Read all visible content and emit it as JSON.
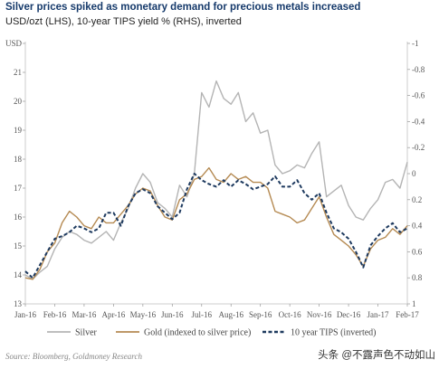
{
  "header": {
    "title": "Silver prices spiked as monetary demand for precious metals increased",
    "subtitle": "USD/ozt (LHS), 10-year TIPS yield % (RHS), inverted"
  },
  "footer": {
    "source": "Source: Bloomberg, Goldmoney Research",
    "watermark": "头条 @不露声色不动如山"
  },
  "colors": {
    "silver": "#b4b4b4",
    "gold": "#b58a52",
    "tips": "#1e3a5f",
    "axis": "#cccccc",
    "title": "#163a6b"
  },
  "chart_data": {
    "type": "line",
    "title": "Silver prices spiked as monetary demand for precious metals increased",
    "subtitle": "USD/ozt (LHS), 10-year TIPS yield % (RHS), inverted",
    "xlabel": "",
    "ylabel_left": "USD/ozt",
    "ylabel_right": "10-year TIPS yield %",
    "ylim_left": [
      13,
      22
    ],
    "ylim_right": [
      1,
      -1
    ],
    "right_axis_inverted": true,
    "yticks_left": [
      13,
      14,
      15,
      16,
      17,
      18,
      19,
      20,
      21,
      22
    ],
    "yticks_left_labels": [
      "13",
      "14",
      "15",
      "16",
      "17",
      "18",
      "19",
      "20",
      "21",
      "USD"
    ],
    "yticks_right": [
      1,
      0.8,
      0.6,
      0.4,
      0.2,
      0,
      -0.2,
      -0.4,
      -0.6,
      -0.8,
      -1
    ],
    "yticks_right_labels": [
      "1",
      "0.8",
      "0.6",
      "0.4",
      "0.2",
      "0",
      "-0.2",
      "-0.4",
      "-0.6",
      "-0.8",
      "-1"
    ],
    "x_ticks": [
      "Jan-16",
      "Feb-16",
      "Mar-16",
      "Apr-16",
      "May-16",
      "Jun-16",
      "Jul-16",
      "Aug-16",
      "Sep-16",
      "Oct-16",
      "Nov-16",
      "Dec-16",
      "Jan-17",
      "Feb-17"
    ],
    "x": [
      0,
      0.25,
      0.5,
      0.75,
      1,
      1.25,
      1.5,
      1.75,
      2,
      2.25,
      2.5,
      2.75,
      3,
      3.25,
      3.5,
      3.75,
      4,
      4.25,
      4.5,
      4.75,
      5,
      5.25,
      5.5,
      5.75,
      6,
      6.25,
      6.5,
      6.75,
      7,
      7.25,
      7.5,
      7.75,
      8,
      8.25,
      8.5,
      8.75,
      9,
      9.25,
      9.5,
      9.75,
      10,
      10.25,
      10.5,
      10.75,
      11,
      11.25,
      11.5,
      11.75,
      12,
      12.25,
      12.5,
      12.75,
      13
    ],
    "grid": false,
    "legend": "bottom",
    "series": [
      {
        "name": "Silver",
        "axis": "left",
        "style": "solid",
        "values": [
          14.0,
          13.85,
          14.1,
          14.3,
          14.9,
          15.3,
          15.5,
          15.4,
          15.2,
          15.1,
          15.3,
          15.5,
          15.2,
          15.8,
          16.3,
          17.0,
          17.5,
          17.2,
          16.5,
          16.3,
          16.0,
          17.1,
          16.7,
          17.5,
          20.3,
          19.8,
          20.7,
          20.1,
          19.9,
          20.3,
          19.3,
          19.6,
          18.9,
          19.0,
          17.8,
          17.5,
          17.6,
          17.8,
          17.7,
          18.2,
          18.6,
          16.7,
          16.9,
          17.1,
          16.4,
          16.0,
          15.9,
          16.3,
          16.6,
          17.2,
          17.3,
          17.0,
          17.9
        ]
      },
      {
        "name": "Gold (indexed to silver price)",
        "axis": "left",
        "style": "solid",
        "values": [
          13.9,
          13.85,
          14.2,
          14.8,
          15.1,
          15.8,
          16.2,
          16.0,
          15.7,
          15.6,
          16.0,
          15.8,
          15.8,
          16.1,
          16.4,
          16.8,
          17.0,
          16.9,
          16.4,
          16.0,
          15.9,
          16.6,
          16.8,
          17.3,
          17.4,
          17.7,
          17.3,
          17.2,
          17.5,
          17.3,
          17.4,
          17.2,
          17.2,
          17.0,
          16.2,
          16.1,
          16.0,
          15.8,
          15.9,
          16.3,
          16.7,
          16.0,
          15.4,
          15.2,
          15.0,
          14.7,
          14.3,
          14.9,
          15.2,
          15.3,
          15.6,
          15.4,
          15.7
        ]
      },
      {
        "name": "10 year TIPS (inverted)",
        "axis": "right",
        "style": "dashed",
        "values": [
          0.75,
          0.8,
          0.7,
          0.6,
          0.5,
          0.48,
          0.45,
          0.4,
          0.42,
          0.45,
          0.42,
          0.3,
          0.3,
          0.4,
          0.25,
          0.15,
          0.12,
          0.15,
          0.25,
          0.3,
          0.35,
          0.3,
          0.12,
          0.0,
          0.05,
          0.08,
          0.1,
          0.05,
          0.1,
          0.05,
          0.08,
          0.12,
          0.1,
          0.08,
          0.02,
          0.1,
          0.1,
          0.05,
          0.15,
          0.2,
          0.15,
          0.3,
          0.42,
          0.45,
          0.5,
          0.6,
          0.72,
          0.55,
          0.48,
          0.42,
          0.38,
          0.45,
          0.42
        ]
      }
    ]
  }
}
